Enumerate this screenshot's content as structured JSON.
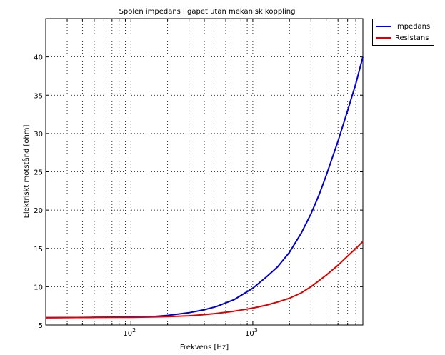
{
  "chart_data": {
    "type": "line",
    "title": "Spolen impedans i gapet utan mekanisk koppling",
    "xlabel": "Frekvens [Hz]",
    "ylabel": "Elektriskt motstånd [ohm]",
    "xscale": "log",
    "xlim": [
      20,
      8000
    ],
    "ylim": [
      5,
      45
    ],
    "yticks": [
      5,
      10,
      15,
      20,
      25,
      30,
      35,
      40
    ],
    "xtick_labels": [
      {
        "value": 100,
        "base": "10",
        "exp": "2"
      },
      {
        "value": 1000,
        "base": "10",
        "exp": "3"
      }
    ],
    "grid": true,
    "legend_position": "outside top-right",
    "series": [
      {
        "name": "Impedans",
        "color": "#0000cc",
        "x": [
          20,
          50,
          100,
          150,
          200,
          300,
          400,
          500,
          700,
          1000,
          1300,
          1600,
          2000,
          2500,
          3000,
          3500,
          4000,
          5000,
          6000,
          7000,
          8000
        ],
        "y": [
          5.95,
          6.0,
          6.05,
          6.1,
          6.25,
          6.6,
          7.0,
          7.4,
          8.3,
          9.8,
          11.3,
          12.6,
          14.5,
          17.0,
          19.5,
          22.0,
          24.5,
          29.0,
          33.0,
          36.5,
          40.0
        ]
      },
      {
        "name": "Resistans",
        "color": "#dd0000",
        "x": [
          20,
          50,
          100,
          150,
          200,
          300,
          400,
          500,
          700,
          1000,
          1300,
          1600,
          2000,
          2500,
          3000,
          3500,
          4000,
          5000,
          6000,
          7000,
          8000
        ],
        "y": [
          5.95,
          6.0,
          6.0,
          6.05,
          6.1,
          6.2,
          6.35,
          6.5,
          6.8,
          7.2,
          7.6,
          8.0,
          8.5,
          9.2,
          10.0,
          10.8,
          11.5,
          12.8,
          14.0,
          15.0,
          15.9
        ]
      }
    ]
  }
}
